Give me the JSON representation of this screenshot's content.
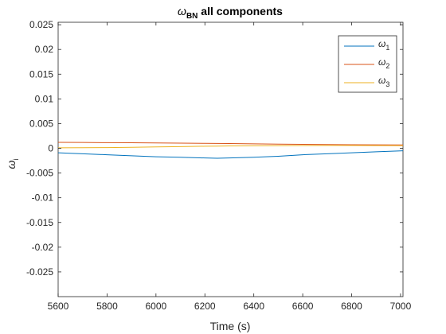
{
  "chart_data": {
    "type": "line",
    "title": {
      "symbol": "ω",
      "subscript": "BN",
      "text": " all components"
    },
    "xlabel": "Time (s)",
    "ylabel": {
      "symbol": "ω",
      "subscript": "i"
    },
    "xlim": [
      5600,
      7010
    ],
    "ylim": [
      -0.03,
      0.0255
    ],
    "xticks": [
      5600,
      5800,
      6000,
      6200,
      6400,
      6600,
      6800,
      7000
    ],
    "xtick_labels": [
      "5600",
      "5800",
      "6000",
      "6200",
      "6400",
      "6600",
      "6800",
      "7000"
    ],
    "yticks": [
      0.025,
      0.02,
      0.015,
      0.01,
      0.005,
      0,
      -0.005,
      -0.01,
      -0.015,
      -0.02,
      -0.025
    ],
    "ytick_labels": [
      "0.025",
      "0.02",
      "0.015",
      "0.01",
      "0.005",
      "0",
      "-0.005",
      "-0.01",
      "-0.015",
      "-0.02",
      "-0.025"
    ],
    "grid": false,
    "legend_position": "top-right",
    "x": [
      5600,
      5700,
      5800,
      5900,
      6000,
      6100,
      6200,
      6250,
      6300,
      6400,
      6500,
      6600,
      6700,
      6800,
      6900,
      7010
    ],
    "series": [
      {
        "name": "ω",
        "sub": "1",
        "color": "#0072BD",
        "values": [
          -0.0009,
          -0.0011,
          -0.0013,
          -0.0015,
          -0.0017,
          -0.0018,
          -0.00195,
          -0.002,
          -0.00195,
          -0.0018,
          -0.0016,
          -0.0013,
          -0.0011,
          -0.0009,
          -0.0007,
          -0.0005
        ]
      },
      {
        "name": "ω",
        "sub": "2",
        "color": "#D95319",
        "values": [
          0.0012,
          0.00118,
          0.00115,
          0.00112,
          0.00108,
          0.00105,
          0.001,
          0.00098,
          0.00096,
          0.0009,
          0.00085,
          0.0008,
          0.00076,
          0.00072,
          0.0007,
          0.00068
        ]
      },
      {
        "name": "ω",
        "sub": "3",
        "color": "#EDB120",
        "values": [
          0.0001,
          0.00012,
          0.00015,
          0.0002,
          0.00028,
          0.00035,
          0.00042,
          0.00045,
          0.00048,
          0.00052,
          0.00055,
          0.00057,
          0.00058,
          0.00058,
          0.00057,
          0.00055
        ]
      }
    ]
  }
}
